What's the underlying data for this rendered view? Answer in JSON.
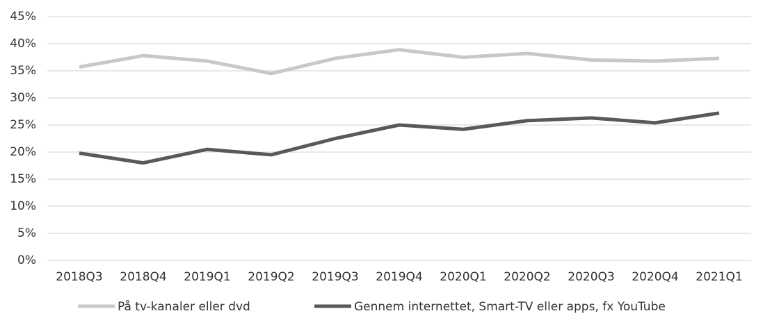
{
  "chart_data": {
    "type": "line",
    "categories": [
      "2018Q3",
      "2018Q4",
      "2019Q1",
      "2019Q2",
      "2019Q3",
      "2019Q4",
      "2020Q1",
      "2020Q2",
      "2020Q3",
      "2020Q4",
      "2021Q1"
    ],
    "series": [
      {
        "name": "På tv-kanaler eller dvd",
        "color": "#c8c8c8",
        "values": [
          35.7,
          37.8,
          36.8,
          34.5,
          37.3,
          38.9,
          37.5,
          38.2,
          37.0,
          36.8,
          37.3
        ]
      },
      {
        "name": "Gennem internettet, Smart-TV eller apps, fx YouTube",
        "color": "#595959",
        "values": [
          19.8,
          18.0,
          20.5,
          19.5,
          22.5,
          25.0,
          24.2,
          25.8,
          26.3,
          25.4,
          27.2
        ]
      }
    ],
    "ylim": [
      0,
      45
    ],
    "yticks": [
      {
        "value": 0,
        "label": "0%"
      },
      {
        "value": 5,
        "label": "5%"
      },
      {
        "value": 10,
        "label": "10%"
      },
      {
        "value": 15,
        "label": "15%"
      },
      {
        "value": 20,
        "label": "20%"
      },
      {
        "value": 25,
        "label": "25%"
      },
      {
        "value": 30,
        "label": "30%"
      },
      {
        "value": 35,
        "label": "35%"
      },
      {
        "value": 40,
        "label": "40%"
      },
      {
        "value": 45,
        "label": "45%"
      }
    ],
    "grid": true,
    "legend": "bottom"
  }
}
